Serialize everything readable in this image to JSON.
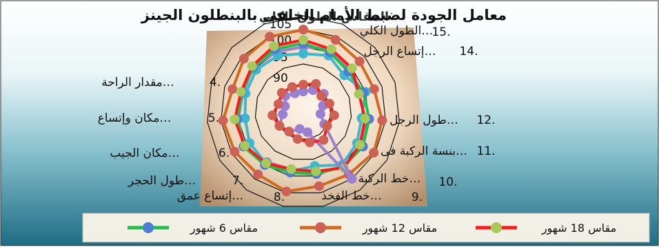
{
  "colors": {
    "series_18": "#ff1a1a",
    "series_18_marker": "#a8c95a",
    "series_12": "#d2691e",
    "series_12_marker": "#cd6155",
    "series_6": "#1fbf4a",
    "series_6_marker": "#4a7fd4",
    "series_8": "#9b7fd0",
    "series_cyan": "#3db7cf"
  },
  "chart_data": {
    "type": "radar",
    "title": "معامل الجودة لضبط الأمام الخلفى بالبنطلون الجينز",
    "overlay_title": "المقاس الطول الكلي",
    "r_ticks": [
      "90",
      "95",
      "100",
      "105"
    ],
    "axes": [
      {
        "num": "15.",
        "label": "الطول الكلي…"
      },
      {
        "num": "14.",
        "label": "إتساع الرجل…"
      },
      {
        "num": "12.",
        "label": "طول الرجل…"
      },
      {
        "num": "11.",
        "label": "بنسة الركبة فى…"
      },
      {
        "num": "10.",
        "label": "خط الركبة…"
      },
      {
        "num": "9.",
        "label": "خط الفخذ…"
      },
      {
        "num": "8.",
        "label": "إتساع عمق…"
      },
      {
        "num": "7.",
        "label": "طول الحجر…"
      },
      {
        "num": "6.",
        "label": "مكان الجيب…"
      },
      {
        "num": "5.",
        "label": "مكان وإتساع…"
      },
      {
        "num": "4.",
        "label": "مقدار الراحة…"
      }
    ],
    "series": [
      {
        "name": "مقاس 18 شهور"
      },
      {
        "name": "مقاس 12 شهور"
      },
      {
        "name": "مقاس 6 شهور"
      }
    ]
  }
}
